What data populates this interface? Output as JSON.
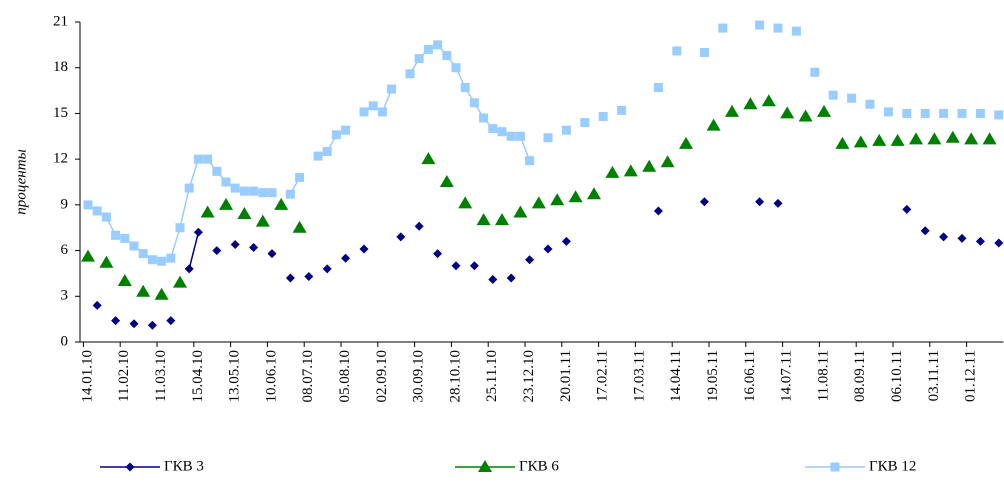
{
  "chart_data": {
    "type": "line",
    "y_label": "проценты",
    "categories": [
      "14.01.10",
      null,
      null,
      null,
      "11.02.10",
      null,
      null,
      null,
      "11.03.10",
      null,
      null,
      null,
      "15.04.10",
      null,
      null,
      null,
      "13.05.10",
      null,
      null,
      null,
      "10.06.10",
      null,
      null,
      null,
      "08.07.10",
      null,
      null,
      null,
      "05.08.10",
      null,
      null,
      null,
      "02.09.10",
      null,
      null,
      null,
      "30.09.10",
      null,
      null,
      null,
      "28.10.10",
      null,
      null,
      null,
      "25.11.10",
      null,
      null,
      null,
      "23.12.10",
      null,
      null,
      null,
      "20.01.11",
      null,
      null,
      null,
      "17.02.11",
      null,
      null,
      null,
      "17.03.11",
      null,
      null,
      null,
      "14.04.11",
      null,
      null,
      null,
      "19.05.11",
      null,
      null,
      null,
      "16.06.11",
      null,
      null,
      null,
      "14.07.11",
      null,
      null,
      null,
      "11.08.11",
      null,
      null,
      null,
      "08.09.11",
      null,
      null,
      null,
      "06.10.11",
      null,
      null,
      null,
      "03.11.11",
      null,
      null,
      null,
      "01.12.11",
      null,
      null,
      null
    ],
    "series": [
      {
        "name": "ГКВ 3",
        "color": "#000080",
        "marker": "diamond",
        "values": [
          null,
          2.4,
          null,
          1.4,
          null,
          1.2,
          null,
          1.1,
          null,
          1.4,
          null,
          4.8,
          7.2,
          null,
          6.0,
          null,
          6.4,
          null,
          6.2,
          null,
          5.8,
          null,
          4.2,
          null,
          4.3,
          null,
          4.8,
          null,
          5.5,
          null,
          6.1,
          null,
          null,
          null,
          6.9,
          null,
          7.6,
          null,
          5.8,
          null,
          5.0,
          null,
          5.0,
          null,
          4.1,
          null,
          4.2,
          null,
          5.4,
          null,
          6.1,
          null,
          6.6,
          null,
          null,
          null,
          null,
          null,
          null,
          null,
          null,
          null,
          8.6,
          null,
          null,
          null,
          null,
          9.2,
          null,
          null,
          null,
          null,
          null,
          9.2,
          null,
          9.1,
          null,
          null,
          null,
          null,
          null,
          null,
          null,
          null,
          null,
          null,
          null,
          null,
          null,
          8.7,
          null,
          7.3,
          null,
          6.9,
          null,
          6.8,
          null,
          6.6,
          null,
          6.5
        ]
      },
      {
        "name": "ГКВ 6",
        "color": "#008000",
        "marker": "triangle",
        "values": [
          5.6,
          null,
          5.2,
          null,
          4.0,
          null,
          3.3,
          null,
          3.1,
          null,
          3.9,
          null,
          null,
          8.5,
          null,
          9.0,
          null,
          8.4,
          null,
          7.9,
          null,
          9.0,
          null,
          7.5,
          null,
          null,
          null,
          null,
          null,
          null,
          null,
          null,
          null,
          null,
          null,
          null,
          null,
          12.0,
          null,
          10.5,
          null,
          9.1,
          null,
          8.0,
          null,
          8.0,
          null,
          8.5,
          null,
          9.1,
          null,
          9.3,
          null,
          9.5,
          null,
          9.7,
          null,
          11.1,
          null,
          11.2,
          null,
          11.5,
          null,
          11.8,
          null,
          13.0,
          null,
          null,
          14.2,
          null,
          15.1,
          null,
          15.6,
          null,
          15.8,
          null,
          15.0,
          null,
          14.8,
          null,
          15.1,
          null,
          13.0,
          null,
          13.1,
          null,
          13.2,
          null,
          13.2,
          null,
          13.3,
          null,
          13.3,
          null,
          13.4,
          null,
          13.3,
          null,
          13.3,
          null
        ]
      },
      {
        "name": "ГКВ 12",
        "color": "#99ccff",
        "marker": "square",
        "values": [
          9.0,
          8.6,
          8.2,
          7.0,
          6.8,
          6.3,
          5.8,
          5.4,
          5.3,
          5.5,
          7.5,
          10.1,
          12.0,
          12.0,
          11.2,
          10.5,
          10.1,
          9.9,
          9.9,
          9.8,
          9.8,
          null,
          9.7,
          10.8,
          null,
          12.2,
          12.5,
          13.6,
          13.9,
          null,
          15.1,
          15.5,
          15.1,
          16.6,
          null,
          17.6,
          18.6,
          19.2,
          19.5,
          18.8,
          18.0,
          16.7,
          15.7,
          14.7,
          14.0,
          13.8,
          13.5,
          13.5,
          11.9,
          null,
          13.4,
          null,
          13.9,
          null,
          14.4,
          null,
          14.8,
          null,
          15.2,
          null,
          null,
          null,
          16.7,
          null,
          19.1,
          null,
          null,
          19.0,
          null,
          20.6,
          null,
          null,
          null,
          20.8,
          null,
          20.6,
          null,
          20.4,
          null,
          17.7,
          null,
          16.2,
          null,
          16.0,
          null,
          15.6,
          null,
          15.1,
          null,
          15.0,
          null,
          15.0,
          null,
          15.0,
          null,
          15.0,
          null,
          15.0,
          null,
          14.9
        ]
      }
    ],
    "ylim": [
      0,
      21
    ],
    "yticks": [
      0,
      3,
      6,
      9,
      12,
      15,
      18,
      21
    ],
    "grid": false,
    "legend": "bottom"
  }
}
